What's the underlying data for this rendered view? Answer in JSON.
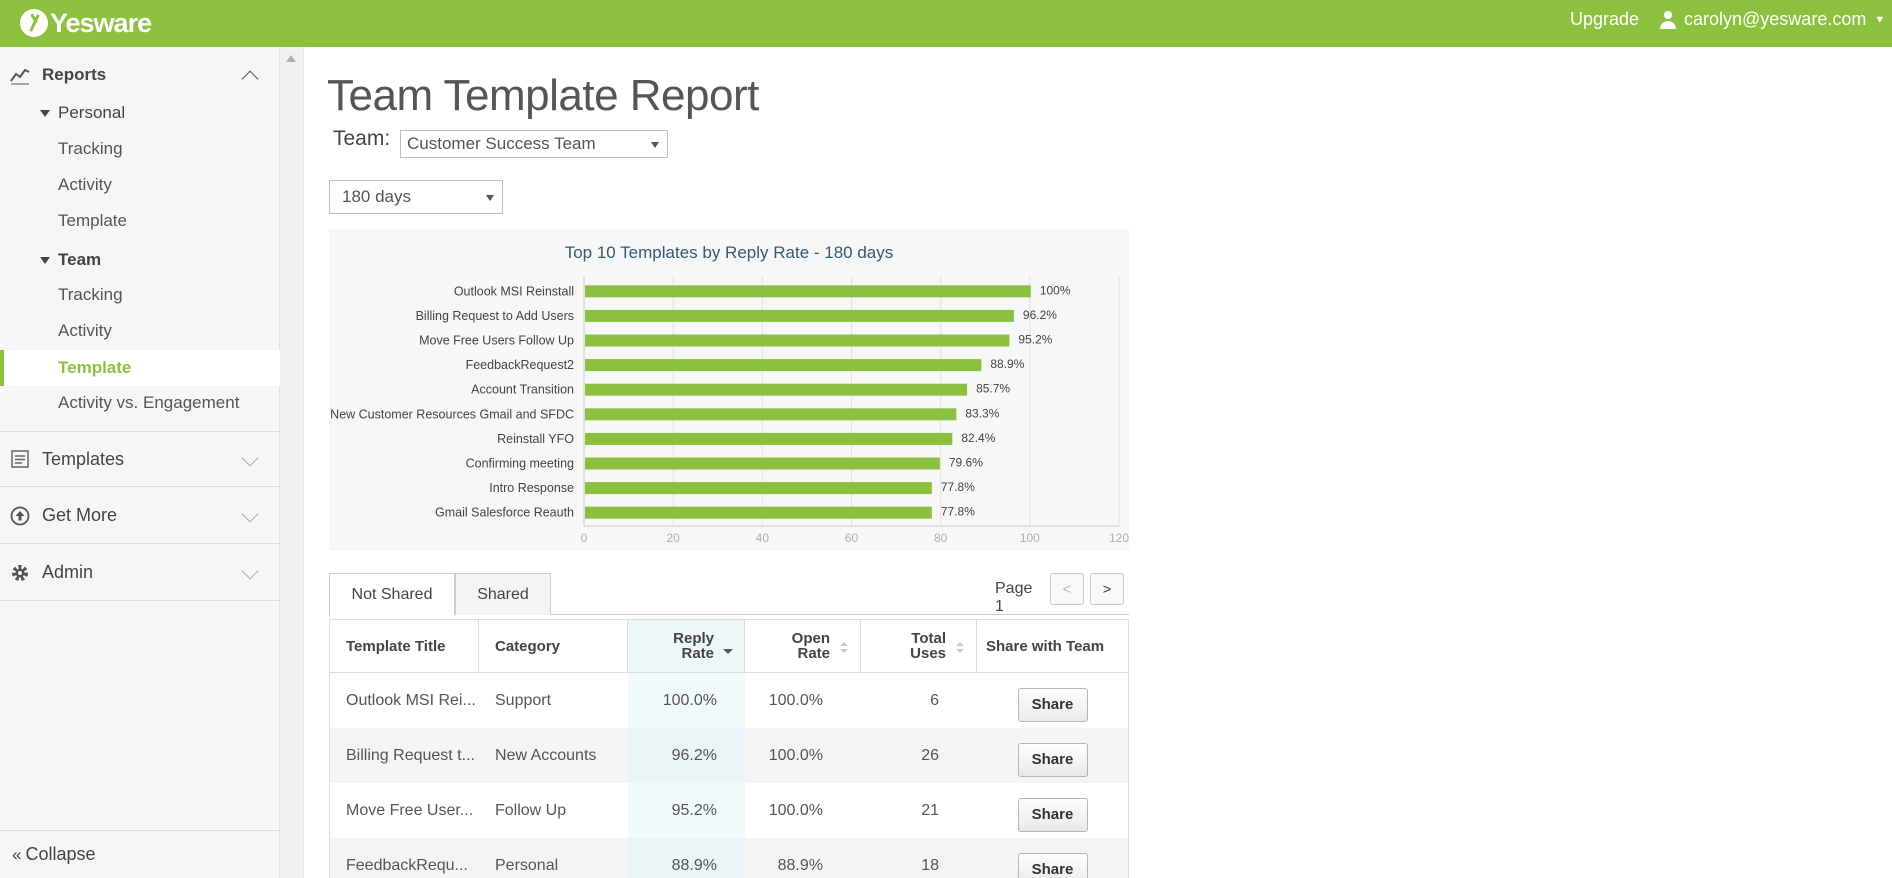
{
  "topbar": {
    "logo_text": "Yesware",
    "upgrade": "Upgrade",
    "user_email": "carolyn@yesware.com"
  },
  "sidebar": {
    "reports": "Reports",
    "personal": "Personal",
    "personal_items": [
      "Tracking",
      "Activity",
      "Template"
    ],
    "team": "Team",
    "team_items": [
      "Tracking",
      "Activity",
      "Template",
      "Activity vs. Engagement"
    ],
    "active_item": "Template",
    "templates": "Templates",
    "get_more": "Get More",
    "admin": "Admin",
    "collapse": "Collapse"
  },
  "main": {
    "title": "Team Template Report",
    "team_label": "Team:",
    "team_value": "Customer Success Team",
    "period_value": "180 days"
  },
  "chart_data": {
    "type": "bar",
    "orientation": "horizontal",
    "title": "Top 10 Templates by Reply Rate - 180 days",
    "categories": [
      "Outlook MSI Reinstall",
      "Billing Request to Add Users",
      "Move Free Users Follow Up",
      "FeedbackRequest2",
      "Account Transition",
      "New Customer Resources Gmail and SFDC",
      "Reinstall YFO",
      "Confirming meeting",
      "Intro Response",
      "Gmail Salesforce Reauth"
    ],
    "values": [
      100,
      96.2,
      95.2,
      88.9,
      85.7,
      83.3,
      82.4,
      79.6,
      77.8,
      77.8
    ],
    "labels": [
      "100%",
      "96.2%",
      "95.2%",
      "88.9%",
      "85.7%",
      "83.3%",
      "82.4%",
      "79.6%",
      "77.8%",
      "77.8%"
    ],
    "xlim": [
      0,
      120
    ],
    "xticks": [
      "0",
      "20",
      "40",
      "60",
      "80",
      "100",
      "120"
    ],
    "bar_color": "#8cc13f",
    "grid": true
  },
  "tabs": [
    "Not Shared",
    "Shared"
  ],
  "pager": {
    "label": "Page 1",
    "prev": "<",
    "next": ">"
  },
  "table": {
    "headers": {
      "title": "Template Title",
      "category": "Category",
      "reply_1": "Reply",
      "reply_2": "Rate",
      "open_1": "Open",
      "open_2": "Rate",
      "uses_1": "Total",
      "uses_2": "Uses",
      "share": "Share with Team"
    },
    "rows": [
      {
        "title": "Outlook MSI Rei...",
        "category": "Support",
        "reply": "100.0%",
        "open": "100.0%",
        "uses": "6",
        "action": "Share"
      },
      {
        "title": "Billing Request t...",
        "category": "New Accounts",
        "reply": "96.2%",
        "open": "100.0%",
        "uses": "26",
        "action": "Share"
      },
      {
        "title": "Move Free User...",
        "category": "Follow Up",
        "reply": "95.2%",
        "open": "100.0%",
        "uses": "21",
        "action": "Share"
      },
      {
        "title": "FeedbackRequ...",
        "category": "Personal",
        "reply": "88.9%",
        "open": "88.9%",
        "uses": "18",
        "action": "Share"
      }
    ]
  }
}
